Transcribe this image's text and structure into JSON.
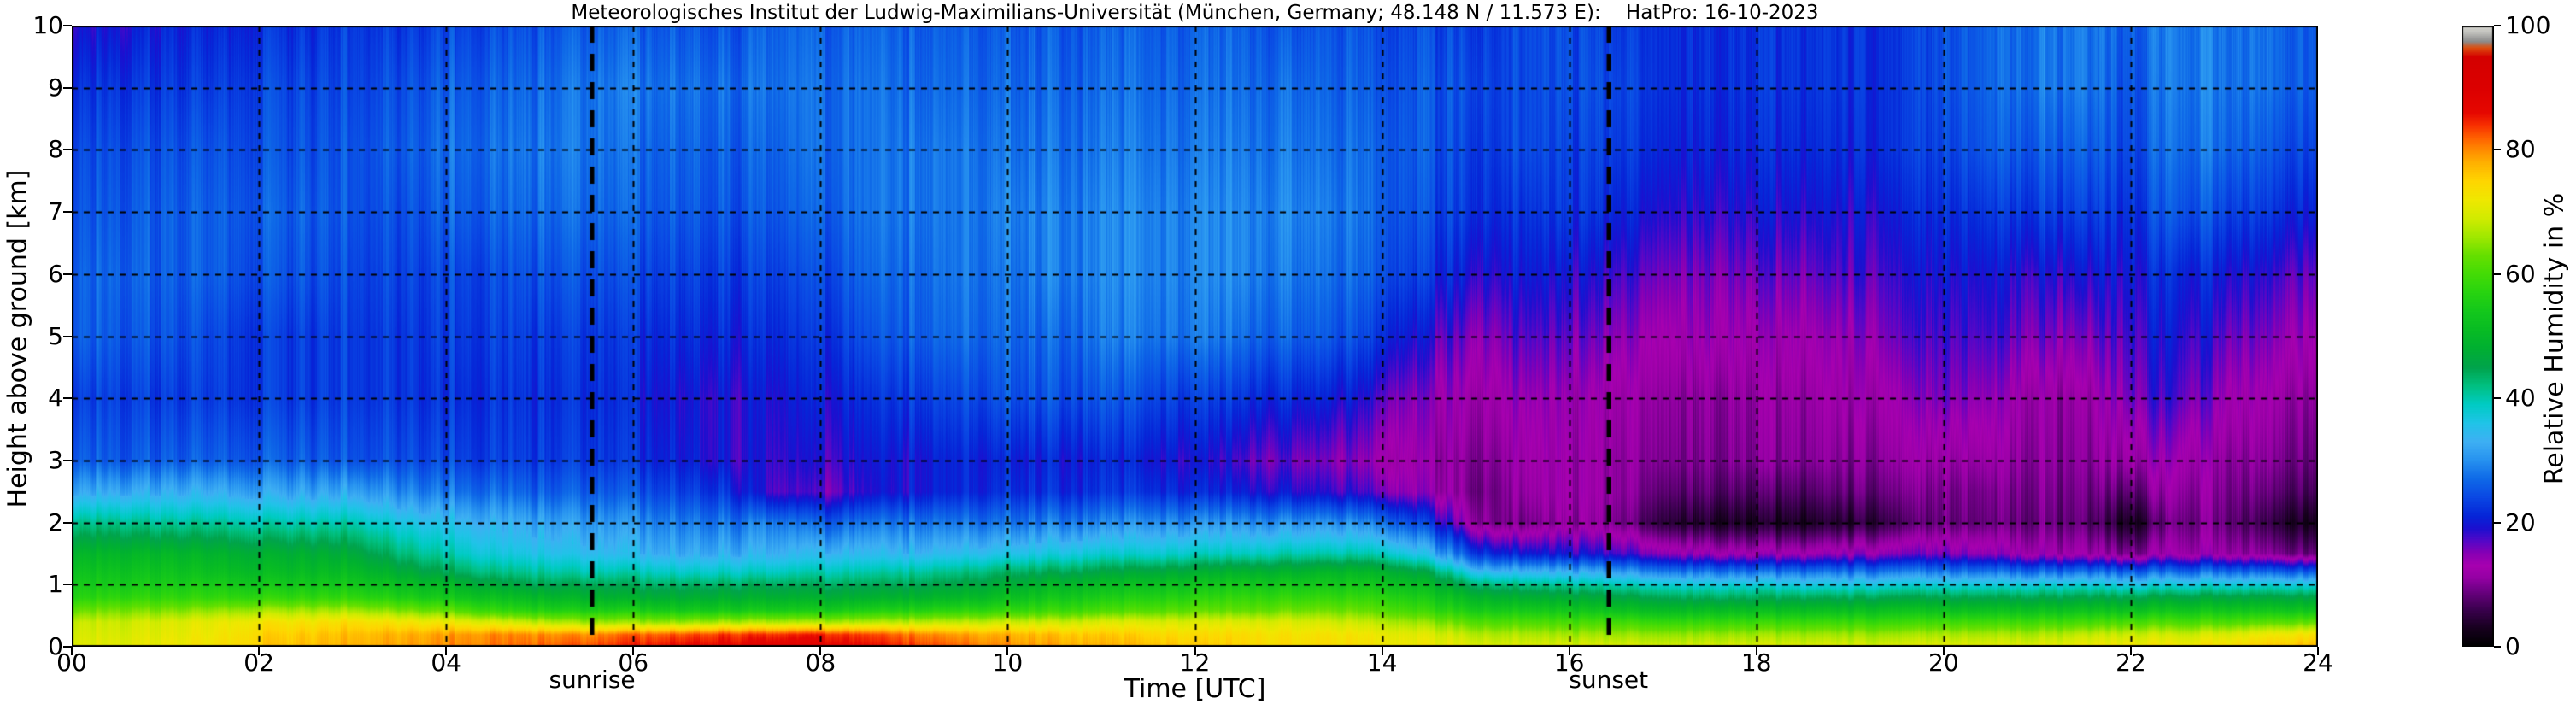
{
  "title": "Meteorologisches Institut der Ludwig-Maximilians-Universität (München, Germany; 48.148 N / 11.573 E):    HatPro: 16-10-2023",
  "station": {
    "institute": "Meteorologisches Institut der Ludwig-Maximilians-Universität",
    "location": "München, Germany",
    "coordinates": "48.148 N / 11.573 E",
    "instrument": "HatPro",
    "date": "16-10-2023"
  },
  "axes": {
    "x": {
      "label": "Time [UTC]",
      "min": 0,
      "max": 24,
      "ticks": [
        {
          "value": 0,
          "label": "00"
        },
        {
          "value": 2,
          "label": "02"
        },
        {
          "value": 4,
          "label": "04"
        },
        {
          "value": 6,
          "label": "06"
        },
        {
          "value": 8,
          "label": "08"
        },
        {
          "value": 10,
          "label": "10"
        },
        {
          "value": 12,
          "label": "12"
        },
        {
          "value": 14,
          "label": "14"
        },
        {
          "value": 16,
          "label": "16"
        },
        {
          "value": 18,
          "label": "18"
        },
        {
          "value": 20,
          "label": "20"
        },
        {
          "value": 22,
          "label": "22"
        },
        {
          "value": 24,
          "label": "24"
        }
      ],
      "gridlines": [
        2,
        4,
        6,
        8,
        10,
        12,
        14,
        16,
        18,
        20,
        22
      ]
    },
    "y": {
      "label": "Height above ground [km]",
      "min": 0,
      "max": 10,
      "ticks": [
        {
          "value": 0,
          "label": "0"
        },
        {
          "value": 1,
          "label": "1"
        },
        {
          "value": 2,
          "label": "2"
        },
        {
          "value": 3,
          "label": "3"
        },
        {
          "value": 4,
          "label": "4"
        },
        {
          "value": 5,
          "label": "5"
        },
        {
          "value": 6,
          "label": "6"
        },
        {
          "value": 7,
          "label": "7"
        },
        {
          "value": 8,
          "label": "8"
        },
        {
          "value": 9,
          "label": "9"
        },
        {
          "value": 10,
          "label": "10"
        }
      ],
      "gridlines": [
        1,
        2,
        3,
        4,
        5,
        6,
        7,
        8,
        9
      ]
    }
  },
  "colorbar": {
    "label": "Relative Humidity in %",
    "min": 0,
    "max": 100,
    "ticks": [
      0,
      20,
      40,
      60,
      80,
      100
    ]
  },
  "annotations": {
    "sunrise": {
      "label": "sunrise",
      "time_utc": 5.56
    },
    "sunset": {
      "label": "sunset",
      "time_utc": 16.42
    }
  },
  "chart_data": {
    "type": "heatmap",
    "quantity": "Relative Humidity in %",
    "x_unit": "hours UTC",
    "y_unit": "km above ground",
    "x_range": [
      0,
      24
    ],
    "y_range": [
      0,
      10
    ],
    "x_hours": [
      0,
      0.5,
      1,
      1.5,
      2,
      2.5,
      3,
      3.5,
      4,
      4.5,
      5,
      5.5,
      6,
      6.5,
      7,
      7.5,
      8,
      8.5,
      9,
      9.5,
      10,
      10.5,
      11,
      11.5,
      12,
      12.5,
      13,
      13.5,
      14,
      14.5,
      15,
      15.5,
      16,
      16.5,
      17,
      17.5,
      18,
      18.5,
      19,
      19.5,
      20,
      20.5,
      21,
      21.5,
      22,
      22.5,
      23,
      23.5,
      24
    ],
    "heights_km": [
      0,
      0.2,
      0.4,
      0.6,
      0.8,
      1.0,
      1.2,
      1.5,
      2.0,
      2.5,
      3.0,
      4.0,
      5.0,
      6.0,
      7.0,
      8.0,
      9.0,
      10.0
    ],
    "rh_grid_rows_bottom_to_top": [
      [
        71,
        71,
        72,
        73,
        76,
        77,
        78,
        79,
        80,
        81,
        82,
        83,
        85,
        87,
        87,
        88,
        88,
        86,
        84,
        82,
        80,
        79,
        78,
        77,
        76,
        75,
        74,
        74,
        73,
        72,
        71,
        70,
        70,
        70,
        70,
        70,
        70,
        70,
        70,
        70,
        71,
        71,
        71,
        72,
        73,
        73,
        74,
        76,
        78
      ],
      [
        70,
        70,
        71,
        72,
        75,
        76,
        77,
        78,
        79,
        80,
        80,
        80,
        82,
        83,
        84,
        84,
        85,
        83,
        81,
        79,
        78,
        77,
        76,
        75,
        74,
        74,
        73,
        73,
        72,
        70,
        68,
        67,
        66,
        66,
        66,
        66,
        66,
        66,
        66,
        66,
        67,
        67,
        67,
        68,
        69,
        69,
        70,
        72,
        74
      ],
      [
        69,
        69,
        70,
        71,
        73,
        73,
        74,
        73,
        72,
        70,
        68,
        66,
        66,
        66,
        67,
        67,
        67,
        67,
        68,
        68,
        69,
        69,
        70,
        70,
        70,
        70,
        70,
        69,
        68,
        65,
        62,
        61,
        60,
        60,
        59,
        59,
        59,
        59,
        59,
        59,
        60,
        60,
        60,
        60,
        61,
        61,
        61,
        62,
        63
      ],
      [
        63,
        64,
        64,
        65,
        66,
        66,
        66,
        64,
        62,
        58,
        56,
        55,
        55,
        54,
        54,
        54,
        54,
        55,
        56,
        57,
        58,
        59,
        60,
        61,
        62,
        62,
        63,
        63,
        62,
        58,
        55,
        54,
        53,
        52,
        51,
        51,
        51,
        51,
        51,
        52,
        52,
        52,
        52,
        52,
        52,
        53,
        53,
        53,
        53
      ],
      [
        57,
        58,
        58,
        58,
        58,
        58,
        58,
        56,
        54,
        52,
        50,
        49,
        48,
        48,
        48,
        48,
        48,
        48,
        49,
        50,
        52,
        54,
        55,
        56,
        57,
        58,
        58,
        58,
        58,
        54,
        50,
        48,
        47,
        46,
        45,
        44,
        44,
        44,
        44,
        45,
        45,
        45,
        45,
        45,
        45,
        46,
        46,
        46,
        46
      ],
      [
        55,
        55,
        55,
        55,
        54,
        54,
        54,
        52,
        50,
        47,
        45,
        45,
        44,
        44,
        44,
        44,
        44,
        44,
        45,
        46,
        48,
        50,
        51,
        52,
        53,
        54,
        54,
        54,
        54,
        50,
        44,
        42,
        41,
        40,
        39,
        38,
        38,
        37,
        37,
        38,
        38,
        38,
        38,
        38,
        37,
        38,
        38,
        38,
        38
      ],
      [
        53,
        53,
        53,
        52,
        51,
        51,
        51,
        48,
        45,
        42,
        41,
        40,
        40,
        39,
        39,
        39,
        40,
        40,
        41,
        42,
        44,
        45,
        46,
        47,
        48,
        49,
        49,
        50,
        50,
        45,
        36,
        34,
        33,
        32,
        30,
        29,
        28,
        28,
        28,
        29,
        29,
        29,
        28,
        28,
        27,
        28,
        28,
        27,
        27
      ],
      [
        50,
        50,
        50,
        49,
        48,
        48,
        47,
        43,
        40,
        37,
        36,
        35,
        34,
        33,
        33,
        33,
        34,
        34,
        34,
        35,
        36,
        37,
        38,
        38,
        39,
        39,
        40,
        40,
        40,
        34,
        24,
        20,
        19,
        18,
        16,
        14,
        13,
        13,
        14,
        15,
        16,
        15,
        13,
        12,
        10,
        13,
        12,
        10,
        9
      ],
      [
        42,
        42,
        41,
        41,
        40,
        40,
        40,
        37,
        35,
        33,
        32,
        31,
        30,
        29,
        28,
        28,
        26,
        27,
        28,
        28,
        28,
        29,
        29,
        30,
        30,
        30,
        30,
        30,
        29,
        22,
        12,
        9,
        11,
        10,
        6,
        4,
        3,
        3,
        4,
        6,
        9,
        9,
        9,
        8,
        3,
        10,
        9,
        5,
        3
      ],
      [
        33,
        33,
        33,
        33,
        32,
        32,
        32,
        30,
        28,
        27,
        26,
        26,
        25,
        24,
        22,
        17,
        16,
        18,
        20,
        21,
        22,
        22,
        22,
        22,
        21,
        20,
        19,
        18,
        17,
        13,
        10,
        11,
        12,
        11,
        9,
        8,
        7,
        7,
        8,
        9,
        10,
        10,
        10,
        9,
        8,
        12,
        10,
        8,
        7
      ],
      [
        27,
        26,
        26,
        26,
        26,
        26,
        25,
        25,
        24,
        23,
        23,
        23,
        22,
        21,
        19,
        18,
        18,
        19,
        20,
        21,
        21,
        21,
        21,
        20,
        19,
        17,
        16,
        15,
        14,
        12,
        11,
        12,
        12,
        11,
        11,
        10,
        10,
        10,
        10,
        11,
        12,
        12,
        11,
        10,
        12,
        14,
        11,
        10,
        9
      ],
      [
        24,
        24,
        23,
        23,
        23,
        23,
        23,
        23,
        22,
        22,
        22,
        22,
        21,
        20,
        19,
        19,
        20,
        21,
        23,
        24,
        25,
        25,
        25,
        24,
        23,
        22,
        21,
        20,
        18,
        14,
        13,
        14,
        13,
        12,
        12,
        11,
        11,
        11,
        12,
        13,
        16,
        15,
        12,
        11,
        16,
        18,
        14,
        12,
        11
      ],
      [
        27,
        26,
        25,
        24,
        23,
        23,
        23,
        23,
        23,
        23,
        23,
        23,
        22,
        22,
        21,
        21,
        22,
        24,
        26,
        27,
        27,
        27,
        28,
        28,
        28,
        27,
        26,
        25,
        23,
        18,
        16,
        17,
        16,
        15,
        14,
        14,
        13,
        13,
        14,
        16,
        18,
        18,
        16,
        15,
        18,
        20,
        17,
        15,
        14
      ],
      [
        27,
        27,
        26,
        26,
        25,
        25,
        24,
        24,
        24,
        24,
        25,
        25,
        24,
        24,
        23,
        23,
        24,
        26,
        27,
        28,
        28,
        29,
        29,
        29,
        29,
        29,
        28,
        27,
        26,
        22,
        20,
        20,
        19,
        18,
        17,
        16,
        16,
        16,
        17,
        18,
        20,
        20,
        19,
        19,
        20,
        22,
        20,
        18,
        17
      ],
      [
        26,
        26,
        26,
        26,
        26,
        26,
        25,
        25,
        26,
        26,
        27,
        27,
        26,
        26,
        25,
        25,
        26,
        27,
        28,
        28,
        29,
        29,
        29,
        29,
        29,
        29,
        29,
        28,
        27,
        24,
        23,
        22,
        22,
        21,
        20,
        19,
        19,
        19,
        19,
        20,
        22,
        23,
        23,
        23,
        22,
        26,
        24,
        22,
        21
      ],
      [
        25,
        25,
        25,
        25,
        25,
        25,
        25,
        26,
        27,
        27,
        28,
        28,
        27,
        27,
        26,
        26,
        27,
        27,
        28,
        28,
        28,
        28,
        28,
        28,
        28,
        28,
        28,
        27,
        27,
        25,
        24,
        24,
        23,
        23,
        22,
        21,
        21,
        21,
        21,
        22,
        24,
        26,
        26,
        26,
        24,
        28,
        27,
        25,
        24
      ],
      [
        23,
        23,
        23,
        23,
        24,
        24,
        24,
        25,
        26,
        26,
        27,
        28,
        28,
        28,
        27,
        27,
        27,
        27,
        27,
        27,
        27,
        27,
        27,
        27,
        27,
        27,
        27,
        26,
        26,
        25,
        25,
        24,
        24,
        24,
        23,
        22,
        22,
        22,
        22,
        22,
        25,
        27,
        28,
        28,
        25,
        29,
        28,
        27,
        26
      ],
      [
        20,
        20,
        21,
        21,
        22,
        22,
        23,
        23,
        24,
        24,
        25,
        26,
        26,
        26,
        25,
        26,
        26,
        26,
        26,
        26,
        26,
        26,
        26,
        26,
        26,
        26,
        25,
        25,
        25,
        24,
        24,
        24,
        24,
        23,
        23,
        22,
        22,
        22,
        22,
        22,
        25,
        27,
        28,
        28,
        26,
        29,
        28,
        27,
        26
      ]
    ],
    "colormap_stops": [
      [
        0,
        "#000000"
      ],
      [
        3,
        "#180020"
      ],
      [
        6,
        "#3c0050"
      ],
      [
        9,
        "#6e0084"
      ],
      [
        11,
        "#9400a4"
      ],
      [
        13,
        "#a800b0"
      ],
      [
        15,
        "#8800b4"
      ],
      [
        17,
        "#5408c8"
      ],
      [
        19,
        "#1c10d0"
      ],
      [
        21,
        "#0626d8"
      ],
      [
        24,
        "#0a48e4"
      ],
      [
        27,
        "#0f6ae8"
      ],
      [
        30,
        "#2792f0"
      ],
      [
        33,
        "#3fb0f4"
      ],
      [
        36,
        "#20c4e8"
      ],
      [
        39,
        "#00ccc4"
      ],
      [
        42,
        "#00c080"
      ],
      [
        45,
        "#00a44c"
      ],
      [
        48,
        "#00b032"
      ],
      [
        51,
        "#08bc24"
      ],
      [
        54,
        "#14c81c"
      ],
      [
        57,
        "#28d410"
      ],
      [
        60,
        "#44dc06"
      ],
      [
        63,
        "#66e000"
      ],
      [
        66,
        "#a0e800"
      ],
      [
        69,
        "#d2ec00"
      ],
      [
        72,
        "#f0e800"
      ],
      [
        75,
        "#ffd600"
      ],
      [
        78,
        "#ffb000"
      ],
      [
        80,
        "#ff8c00"
      ],
      [
        82,
        "#ff6000"
      ],
      [
        84,
        "#f83000"
      ],
      [
        86,
        "#e60800"
      ],
      [
        90,
        "#dc0000"
      ],
      [
        95,
        "#d40000"
      ],
      [
        96.5,
        "#dd4f10"
      ],
      [
        97.5,
        "#8c8c8c"
      ],
      [
        99,
        "#c2c2be"
      ],
      [
        100,
        "#d8d8d2"
      ]
    ],
    "grid_on": true,
    "gridline_style": "black dashed"
  }
}
